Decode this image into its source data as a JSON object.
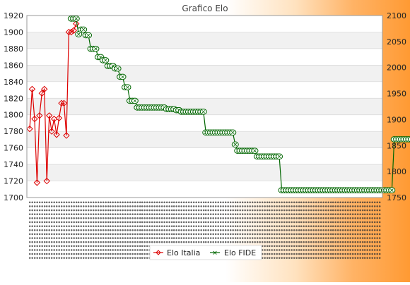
{
  "chart_data": {
    "type": "line",
    "title": "Grafico Elo",
    "xlabel": "",
    "ylabel": "",
    "grid": true,
    "legend_position": "bottom-center",
    "colors": {
      "elo_italia": "#dd0000",
      "elo_fide": "#006600",
      "plot_background": "#ffffff",
      "band": "#f1f1f1",
      "gradient_end": "#ff9a33"
    },
    "y_left": {
      "range": [
        1700,
        1920
      ],
      "ticks": [
        "1700",
        "1720",
        "1740",
        "1760",
        "1780",
        "1800",
        "1820",
        "1840",
        "1860",
        "1880",
        "1900",
        "1920"
      ]
    },
    "y_right": {
      "range": [
        1750,
        2100
      ],
      "ticks": [
        "1750",
        "1800",
        "1850",
        "1900",
        "1950",
        "2000",
        "2050",
        "2100"
      ]
    },
    "n_points": 144,
    "series": [
      {
        "name": "Elo Italia",
        "axis": "left",
        "values": [
          1783,
          1831,
          1795,
          1718,
          1799,
          1826,
          1831,
          1720,
          1799,
          1780,
          1795,
          1776,
          1796,
          1814,
          1814,
          1775,
          1900,
          1900,
          1902,
          1910
        ]
      },
      {
        "name": "Elo FIDE",
        "axis": "right",
        "x_start": 17,
        "values": [
          2094,
          2094,
          2094,
          2064,
          2073,
          2073,
          2062,
          2062,
          2036,
          2036,
          2036,
          2020,
          2020,
          2014,
          2014,
          2003,
          2003,
          2003,
          1998,
          1998,
          1982,
          1982,
          1962,
          1962,
          1936,
          1936,
          1936,
          1923,
          1923,
          1923,
          1923,
          1923,
          1923,
          1923,
          1923,
          1923,
          1923,
          1923,
          1923,
          1920,
          1920,
          1920,
          1920,
          1918,
          1918,
          1915,
          1915,
          1915,
          1915,
          1915,
          1915,
          1915,
          1915,
          1915,
          1915,
          1875,
          1875,
          1875,
          1875,
          1875,
          1875,
          1875,
          1875,
          1875,
          1875,
          1875,
          1875,
          1852,
          1840,
          1840,
          1840,
          1840,
          1840,
          1840,
          1840,
          1840,
          1829,
          1829,
          1829,
          1829,
          1829,
          1829,
          1829,
          1829,
          1829,
          1829,
          1764,
          1764,
          1764,
          1764,
          1764,
          1764,
          1764,
          1764,
          1764,
          1764,
          1764,
          1764,
          1764,
          1764,
          1764,
          1764,
          1764,
          1764,
          1764,
          1764,
          1764,
          1764,
          1764,
          1764,
          1764,
          1764,
          1764,
          1764,
          1764,
          1764,
          1764,
          1764,
          1764,
          1764,
          1764,
          1764,
          1764,
          1764,
          1764,
          1764,
          1764,
          1764,
          1764,
          1764,
          1764,
          1764,
          1862,
          1862,
          1862,
          1862,
          1862,
          1862,
          1862,
          1862,
          1862,
          1862,
          1862,
          1850,
          1850,
          1850,
          1850,
          1850,
          1850
        ]
      }
    ]
  }
}
